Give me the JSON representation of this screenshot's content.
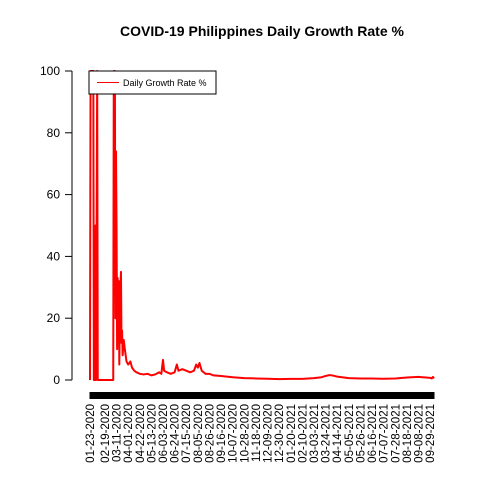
{
  "chart_data": {
    "type": "line",
    "title": "COVID-19 Philippines Daily Growth Rate %",
    "xlabel": "",
    "ylabel": "",
    "ylim": [
      0,
      100
    ],
    "yticks": [
      0,
      20,
      40,
      60,
      80,
      100
    ],
    "x_date_range": [
      "01-23-2020",
      "10-06-2021"
    ],
    "xtick_labels": [
      "01-23-2020",
      "02-19-2020",
      "03-11-2020",
      "04-01-2020",
      "04-22-2020",
      "05-13-2020",
      "06-03-2020",
      "06-24-2020",
      "07-15-2020",
      "08-05-2020",
      "08-26-2020",
      "09-16-2020",
      "10-07-2020",
      "10-28-2020",
      "11-18-2020",
      "12-09-2020",
      "12-30-2020",
      "01-20-2021",
      "02-10-2021",
      "03-03-2021",
      "03-24-2021",
      "04-14-2021",
      "05-05-2021",
      "05-26-2021",
      "06-16-2021",
      "07-07-2021",
      "07-28-2021",
      "08-18-2021",
      "09-08-2021",
      "09-29-2021"
    ],
    "legend": {
      "position": "top-left",
      "entries": [
        "Daily Growth Rate %"
      ]
    },
    "series": [
      {
        "name": "Daily Growth Rate %",
        "color": "#ff0000",
        "points": [
          [
            "01-23-2020",
            0
          ],
          [
            "01-24-2020",
            100
          ],
          [
            "01-29-2020",
            100
          ],
          [
            "01-30-2020",
            0
          ],
          [
            "02-01-2020",
            0
          ],
          [
            "02-02-2020",
            50
          ],
          [
            "02-03-2020",
            0
          ],
          [
            "02-05-2020",
            100
          ],
          [
            "02-06-2020",
            0
          ],
          [
            "03-05-2020",
            0
          ],
          [
            "03-06-2020",
            100
          ],
          [
            "03-07-2020",
            67
          ],
          [
            "03-08-2020",
            100
          ],
          [
            "03-09-2020",
            20
          ],
          [
            "03-10-2020",
            74
          ],
          [
            "03-11-2020",
            50
          ],
          [
            "03-12-2020",
            10
          ],
          [
            "03-13-2020",
            33
          ],
          [
            "03-14-2020",
            15
          ],
          [
            "03-15-2020",
            32
          ],
          [
            "03-16-2020",
            5
          ],
          [
            "03-17-2020",
            20
          ],
          [
            "03-18-2020",
            30
          ],
          [
            "03-19-2020",
            35
          ],
          [
            "03-20-2020",
            12
          ],
          [
            "03-21-2020",
            16
          ],
          [
            "03-22-2020",
            8
          ],
          [
            "03-24-2020",
            13
          ],
          [
            "03-26-2020",
            10
          ],
          [
            "03-29-2020",
            6
          ],
          [
            "04-01-2020",
            5
          ],
          [
            "04-05-2020",
            6
          ],
          [
            "04-08-2020",
            4
          ],
          [
            "04-12-2020",
            3
          ],
          [
            "04-16-2020",
            2.5
          ],
          [
            "04-22-2020",
            2
          ],
          [
            "04-29-2020",
            1.8
          ],
          [
            "05-06-2020",
            2
          ],
          [
            "05-13-2020",
            1.5
          ],
          [
            "05-20-2020",
            1.8
          ],
          [
            "05-27-2020",
            2.5
          ],
          [
            "05-31-2020",
            2
          ],
          [
            "06-03-2020",
            6.5
          ],
          [
            "06-05-2020",
            3
          ],
          [
            "06-10-2020",
            2.5
          ],
          [
            "06-17-2020",
            2
          ],
          [
            "06-24-2020",
            2.5
          ],
          [
            "06-28-2020",
            5
          ],
          [
            "07-01-2020",
            3
          ],
          [
            "07-08-2020",
            3.5
          ],
          [
            "07-15-2020",
            3
          ],
          [
            "07-22-2020",
            2.5
          ],
          [
            "07-29-2020",
            3
          ],
          [
            "08-02-2020",
            5
          ],
          [
            "08-05-2020",
            4
          ],
          [
            "08-08-2020",
            5.5
          ],
          [
            "08-12-2020",
            3
          ],
          [
            "08-19-2020",
            2
          ],
          [
            "08-26-2020",
            2
          ],
          [
            "09-02-2020",
            1.5
          ],
          [
            "09-16-2020",
            1.3
          ],
          [
            "10-07-2020",
            0.9
          ],
          [
            "10-28-2020",
            0.6
          ],
          [
            "11-18-2020",
            0.5
          ],
          [
            "12-09-2020",
            0.4
          ],
          [
            "12-30-2020",
            0.3
          ],
          [
            "01-20-2021",
            0.35
          ],
          [
            "02-10-2021",
            0.35
          ],
          [
            "03-03-2021",
            0.6
          ],
          [
            "03-17-2021",
            0.9
          ],
          [
            "03-24-2021",
            1.3
          ],
          [
            "03-31-2021",
            1.6
          ],
          [
            "04-07-2021",
            1.4
          ],
          [
            "04-14-2021",
            1.1
          ],
          [
            "05-05-2021",
            0.6
          ],
          [
            "05-26-2021",
            0.5
          ],
          [
            "06-16-2021",
            0.5
          ],
          [
            "07-07-2021",
            0.4
          ],
          [
            "07-28-2021",
            0.5
          ],
          [
            "08-18-2021",
            0.8
          ],
          [
            "09-08-2021",
            1.0
          ],
          [
            "09-15-2021",
            0.9
          ],
          [
            "09-22-2021",
            0.8
          ],
          [
            "09-29-2021",
            0.7
          ],
          [
            "10-02-2021",
            0.5
          ],
          [
            "10-04-2021",
            1.0
          ],
          [
            "10-06-2021",
            0.5
          ]
        ]
      }
    ]
  }
}
